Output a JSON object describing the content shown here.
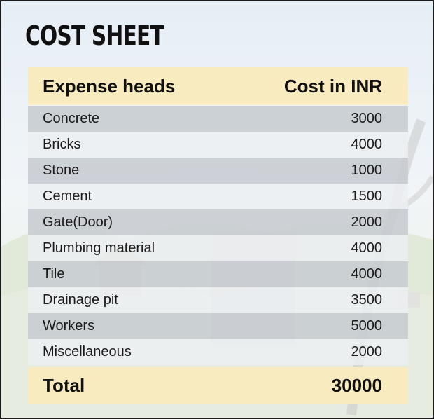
{
  "title": "COST SHEET",
  "table": {
    "header": {
      "expense": "Expense heads",
      "cost": "Cost in INR"
    },
    "rows": [
      {
        "expense": "Concrete",
        "cost": "3000"
      },
      {
        "expense": "Bricks",
        "cost": "4000"
      },
      {
        "expense": "Stone",
        "cost": "1000"
      },
      {
        "expense": "Cement",
        "cost": "1500"
      },
      {
        "expense": "Gate(Door)",
        "cost": "2000"
      },
      {
        "expense": "Plumbing material",
        "cost": "4000"
      },
      {
        "expense": "Tile",
        "cost": "4000"
      },
      {
        "expense": "Drainage pit",
        "cost": "3500"
      },
      {
        "expense": "Workers",
        "cost": "5000"
      },
      {
        "expense": "Miscellaneous",
        "cost": "2000"
      }
    ],
    "total": {
      "label": "Total",
      "value": "30000"
    }
  },
  "colors": {
    "header_bg": "#f8ebc0",
    "row_dark": "#c7ccd1",
    "row_light": "#eceff2",
    "border": "#1c1c1c"
  }
}
